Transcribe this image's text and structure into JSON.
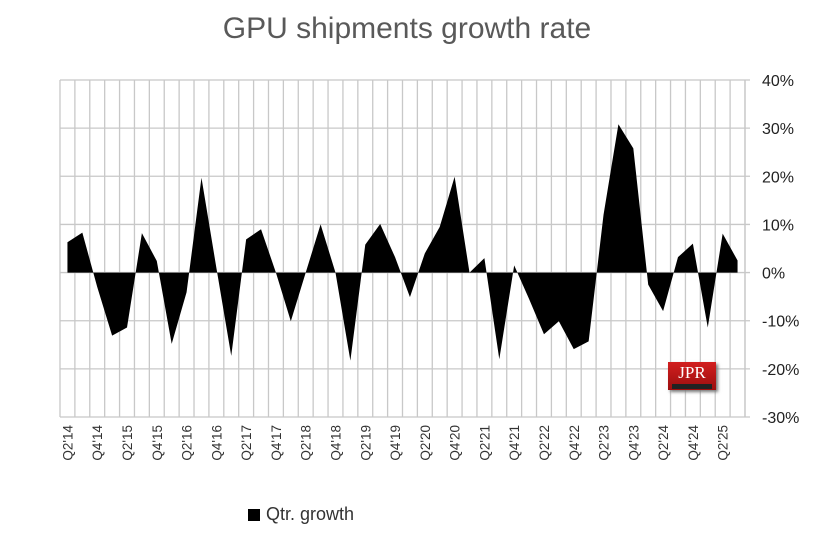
{
  "chart_data": {
    "type": "area",
    "title": "GPU shipments growth rate",
    "categories": [
      "Q2'14",
      "Q3'14",
      "Q4'14",
      "Q1'15",
      "Q2'15",
      "Q3'15",
      "Q4'15",
      "Q1'16",
      "Q2'16",
      "Q3'16",
      "Q4'16",
      "Q1'17",
      "Q2'17",
      "Q3'17",
      "Q4'17",
      "Q1'18",
      "Q2'18",
      "Q3'18",
      "Q4'18",
      "Q1'19",
      "Q2'19",
      "Q3'19",
      "Q4'19",
      "Q1'20",
      "Q2'20",
      "Q3'20",
      "Q4'20",
      "Q1'21",
      "Q2'21",
      "Q3'21",
      "Q4'21",
      "Q1'22",
      "Q2'22",
      "Q3'22",
      "Q4'22",
      "Q1'23",
      "Q2'23",
      "Q3'23",
      "Q4'23",
      "Q1'24",
      "Q2'24",
      "Q3'24",
      "Q4'24",
      "Q1'25",
      "Q2'25",
      "Q3'25"
    ],
    "tick_labels": [
      "Q2'14",
      "Q4'14",
      "Q2'15",
      "Q4'15",
      "Q2'16",
      "Q4'16",
      "Q2'17",
      "Q4'17",
      "Q2'18",
      "Q4'18",
      "Q2'19",
      "Q4'19",
      "Q2'20",
      "Q4'20",
      "Q2'21",
      "Q4'21",
      "Q2'22",
      "Q4'22",
      "Q2'23",
      "Q4'23",
      "Q2'24",
      "Q4'24",
      "Q2'25"
    ],
    "series": [
      {
        "name": "Qtr. growth",
        "color": "#000000",
        "values": [
          6.3,
          8.3,
          -3,
          -13.1,
          -11.4,
          8.2,
          2.4,
          -14.8,
          -4.1,
          19.7,
          1,
          -17.3,
          6.9,
          9,
          0,
          -10.1,
          0,
          10,
          0,
          -18.3,
          5.8,
          10.1,
          3.2,
          -5.1,
          4,
          9.5,
          19.9,
          0,
          3,
          -18,
          1.5,
          -5.5,
          -12.8,
          -10.1,
          -15.9,
          -14.3,
          12,
          30.8,
          25.8,
          -2.5,
          -8,
          3.2,
          6,
          -11.4,
          8.1,
          2.5
        ]
      }
    ],
    "y_ticks": [
      "40%",
      "30%",
      "20%",
      "10%",
      "0%",
      "-10%",
      "-20%",
      "-30%"
    ],
    "ylim": [
      -30,
      40
    ],
    "y_axis_side": "right",
    "grid": true,
    "legend": "bottom-left"
  },
  "logo": {
    "text": "JPR",
    "subtext": "Jon Peddie Research"
  }
}
